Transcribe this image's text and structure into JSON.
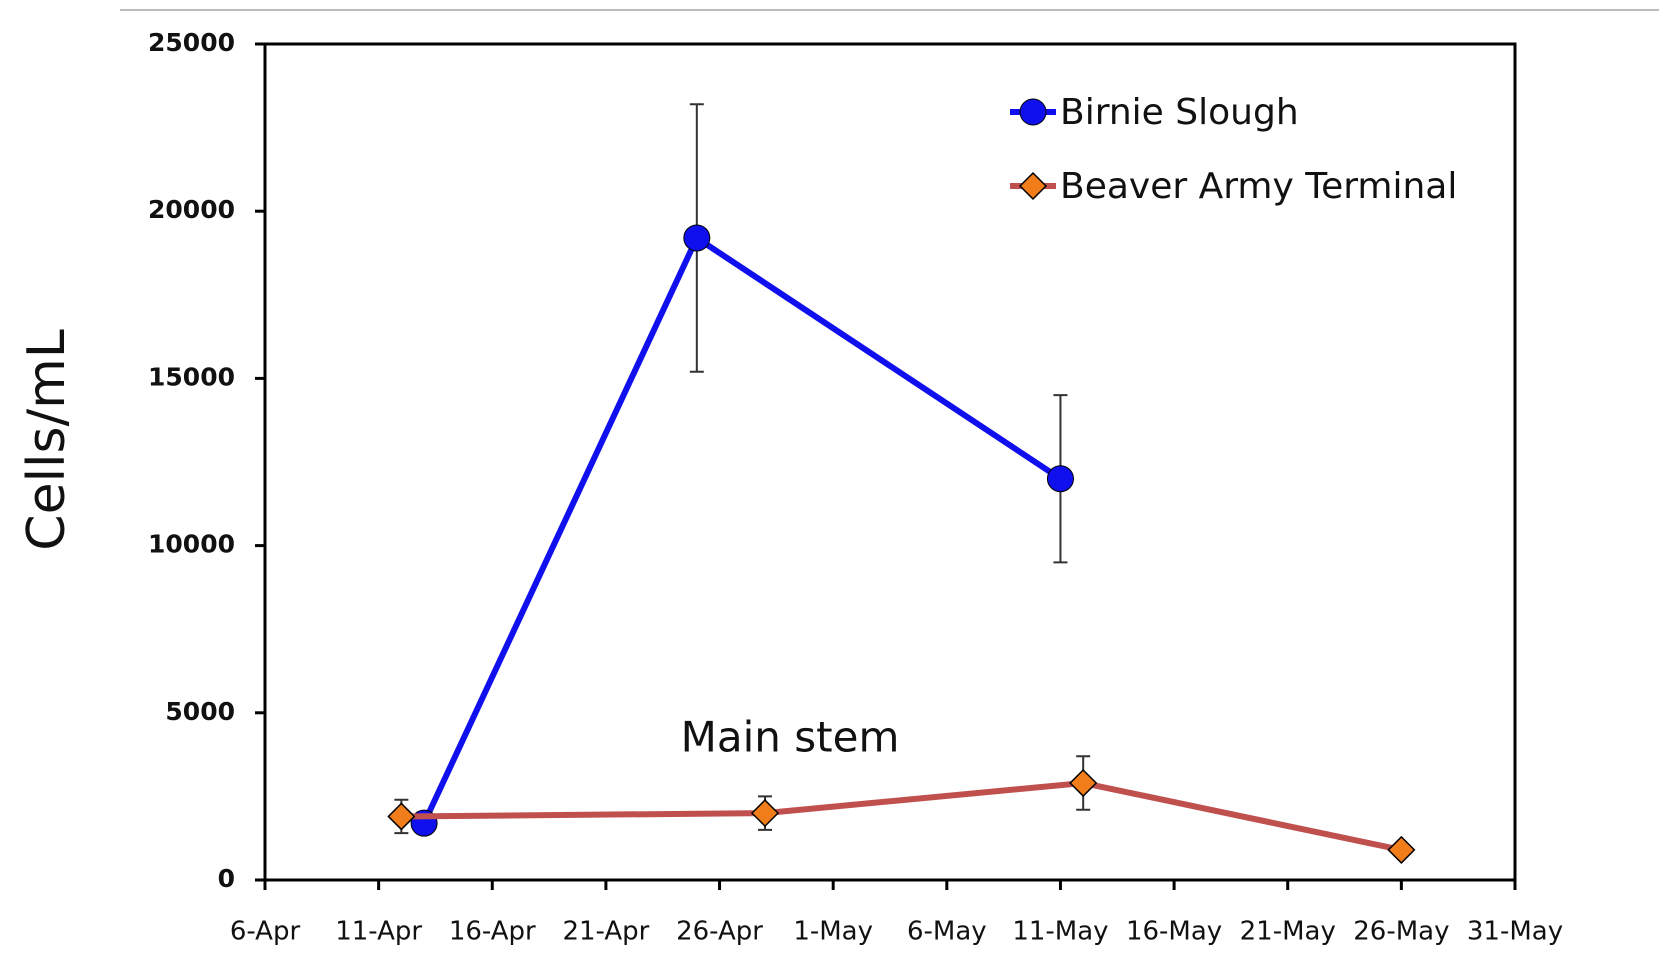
{
  "chart_data": {
    "type": "line",
    "y_label": "Cells/mL",
    "annotation": "Main stem",
    "xlim": [
      "6-Apr",
      "31-May"
    ],
    "xticks": [
      "6-Apr",
      "11-Apr",
      "16-Apr",
      "21-Apr",
      "26-Apr",
      "1-May",
      "6-May",
      "11-May",
      "16-May",
      "21-May",
      "26-May",
      "31-May"
    ],
    "ylim": [
      0,
      25000
    ],
    "yticks": [
      0,
      5000,
      10000,
      15000,
      20000,
      25000
    ],
    "legend": "upper right",
    "series": [
      {
        "name": "Birnie Slough",
        "color": "#1010ee",
        "marker": "circle",
        "x": [
          "13-Apr",
          "25-Apr",
          "11-May"
        ],
        "values": [
          1700,
          19200,
          12000
        ],
        "errors": [
          0,
          4000,
          2500
        ]
      },
      {
        "name": "Beaver Army Terminal",
        "color": "#c0504d",
        "marker": "diamond",
        "x": [
          "12-Apr",
          "28-Apr",
          "12-May",
          "26-May"
        ],
        "values": [
          1900,
          2000,
          2900,
          900
        ],
        "errors": [
          500,
          500,
          800,
          0
        ]
      }
    ]
  }
}
